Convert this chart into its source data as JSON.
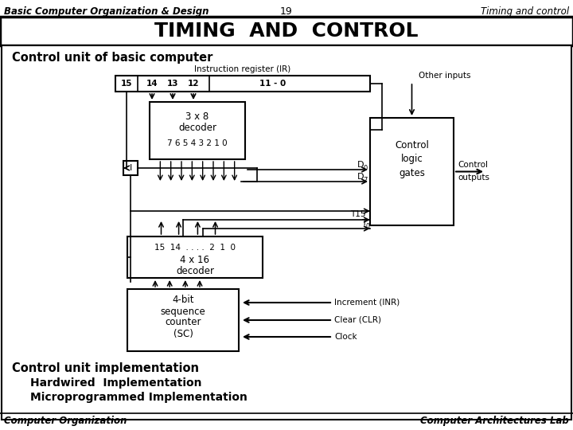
{
  "title": "TIMING  AND  CONTROL",
  "header_left": "Basic Computer Organization & Design",
  "header_center": "19",
  "header_right": "Timing and control",
  "footer_left": "Computer Organization",
  "footer_right": "Computer Architectures Lab",
  "section1_title": "Control unit of basic computer",
  "section2_title": "Control unit implementation",
  "impl_line1": "Hardwired  Implementation",
  "impl_line2": "Microprogrammed Implementation",
  "bg_color": "#ffffff"
}
